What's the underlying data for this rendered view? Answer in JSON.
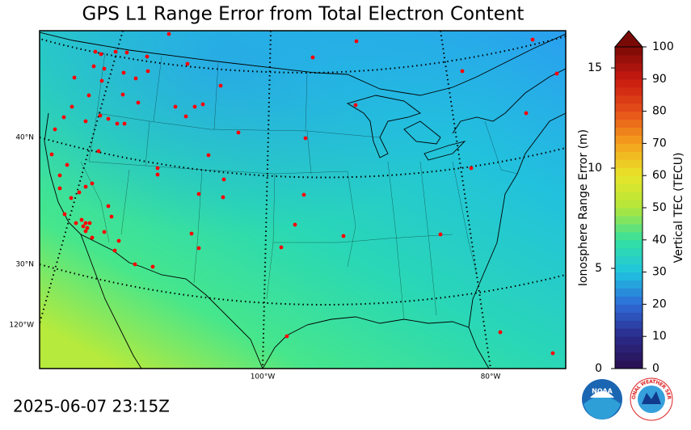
{
  "title": "GPS L1 Range Error from Total Electron Content",
  "map": {
    "graticule_labels": [
      "40°N",
      "30°N",
      "120°W",
      "100°W",
      "80°W"
    ]
  },
  "colorbar": {
    "label": "Ionosphere Range Error (m)",
    "ylim": [
      0,
      16.05
    ],
    "yticks": [
      0,
      5,
      10,
      15
    ],
    "y2_label": "Vertical TEC (TECU)",
    "y2lim": [
      0,
      100
    ],
    "y2ticks": [
      0,
      10,
      20,
      30,
      40,
      50,
      60,
      70,
      80,
      90,
      100
    ],
    "extend": "max"
  },
  "timestamp": "2025-06-07 23:15Z",
  "logos": {
    "noaa": "NOAA",
    "nws": "NATIONAL WEATHER SERVICE"
  }
}
